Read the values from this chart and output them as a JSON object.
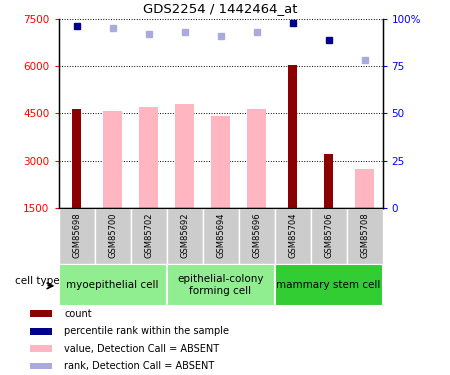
{
  "title": "GDS2254 / 1442464_at",
  "samples": [
    "GSM85698",
    "GSM85700",
    "GSM85702",
    "GSM85692",
    "GSM85694",
    "GSM85696",
    "GSM85704",
    "GSM85706",
    "GSM85708"
  ],
  "count_values": [
    4650,
    null,
    null,
    null,
    null,
    null,
    6050,
    3200,
    null
  ],
  "absent_values": [
    null,
    4580,
    4700,
    4800,
    4420,
    4650,
    null,
    null,
    2750
  ],
  "percentile_rank": [
    96,
    null,
    null,
    null,
    null,
    null,
    98,
    89,
    null
  ],
  "rank_absent": [
    null,
    95,
    92,
    93,
    91,
    93,
    null,
    null,
    78
  ],
  "ylim_left": [
    1500,
    7500
  ],
  "ylim_right": [
    0,
    100
  ],
  "yticks_left": [
    1500,
    3000,
    4500,
    6000,
    7500
  ],
  "yticks_right": [
    0,
    25,
    50,
    75,
    100
  ],
  "count_color": "#8B0000",
  "absent_bar_color": "#FFB6C1",
  "percentile_color": "#00008B",
  "rank_absent_color": "#AAAADD",
  "cell_type_colors": [
    "#90EE90",
    "#90EE90",
    "#32CD32"
  ],
  "cell_type_labels": [
    "myoepithelial cell",
    "epithelial-colony\nforming cell",
    "mammary stem cell"
  ],
  "cell_type_ranges": [
    [
      0,
      3
    ],
    [
      3,
      6
    ],
    [
      6,
      9
    ]
  ],
  "legend_labels": [
    "count",
    "percentile rank within the sample",
    "value, Detection Call = ABSENT",
    "rank, Detection Call = ABSENT"
  ],
  "legend_colors": [
    "#8B0000",
    "#00008B",
    "#FFB6C1",
    "#AAAADD"
  ]
}
